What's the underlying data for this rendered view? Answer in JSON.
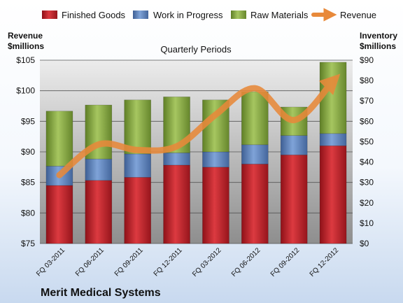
{
  "chart_data": {
    "type": "bar",
    "subtype": "stacked-bar-with-line",
    "title": "Quarterly Periods",
    "footer": "Merit Medical Systems",
    "left_axis_label": [
      "Revenue",
      "$millions"
    ],
    "right_axis_label": [
      "Inventory",
      "$millions"
    ],
    "categories": [
      "FQ 03-2011",
      "FQ 06-2011",
      "FQ 09-2011",
      "FQ 12-2011",
      "FQ 03-2012",
      "FQ 06-2012",
      "FQ 09-2012",
      "FQ 12-2012"
    ],
    "y_left": {
      "min": 75,
      "max": 105,
      "step": 5,
      "ticks": [
        "$75",
        "$80",
        "$85",
        "$90",
        "$95",
        "$100",
        "$105"
      ]
    },
    "y_right": {
      "min": 0,
      "max": 90,
      "step": 10,
      "ticks": [
        "$0",
        "$10",
        "$20",
        "$30",
        "$40",
        "$50",
        "$60",
        "$70",
        "$80",
        "$90"
      ]
    },
    "series": [
      {
        "name": "Finished Goods",
        "axis": "right",
        "color": "#c0202a",
        "values": [
          28.5,
          31,
          32.5,
          38.5,
          37.5,
          39,
          43.5,
          48
        ]
      },
      {
        "name": "Work in Progress",
        "axis": "right",
        "color": "#5f86c2",
        "values": [
          9.5,
          10.5,
          11.5,
          6,
          7.5,
          9.5,
          9.5,
          6
        ]
      },
      {
        "name": "Raw Materials",
        "axis": "right",
        "color": "#8fb04a",
        "values": [
          27,
          26.5,
          26.5,
          27.5,
          25.5,
          26,
          14,
          35
        ]
      },
      {
        "name": "Revenue",
        "axis": "left",
        "type": "line",
        "color": "#e8893a",
        "values": [
          86.2,
          91.2,
          90.3,
          90.9,
          96.1,
          100.4,
          95.2,
          101.6
        ]
      }
    ],
    "legend_position": "top",
    "grid": true
  }
}
